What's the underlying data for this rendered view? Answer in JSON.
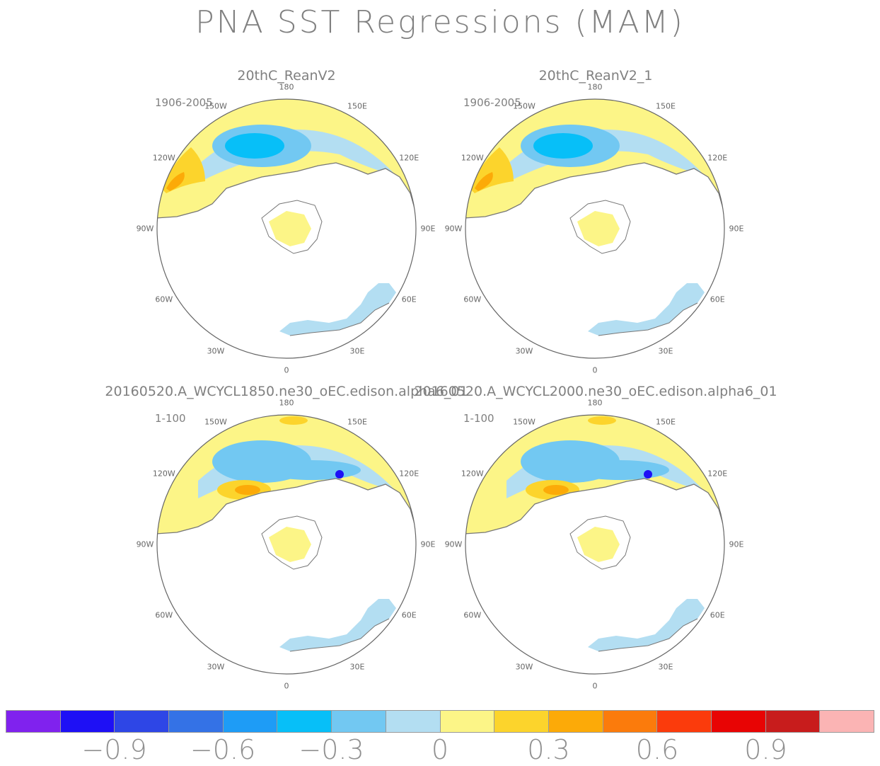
{
  "title": "PNA SST Regressions (MAM)",
  "panels": [
    {
      "title": "20thC_ReanV2",
      "period": "1906-2005"
    },
    {
      "title": "20thC_ReanV2_1",
      "period": "1906-2005"
    },
    {
      "title": "20160520.A_WCYCL1850.ne30_oEC.edison.alpha6_01",
      "period": "1-100"
    },
    {
      "title": "20160520.A_WCYCL2000.ne30_oEC.edison.alpha6_01",
      "period": "1-100"
    }
  ],
  "longitude_labels": {
    "top": "180",
    "upper_left": "150W",
    "upper_right": "150E",
    "left_high": "120W",
    "right_high": "120E",
    "left": "90W",
    "right": "90E",
    "left_low": "60W",
    "right_low": "60E",
    "lower_left": "30W",
    "lower_right": "30E",
    "bottom": "0"
  },
  "colorbar": {
    "colors": [
      "#8022ee",
      "#1e10f5",
      "#2e46e6",
      "#3472e6",
      "#1e9cf6",
      "#07bff8",
      "#72c8f2",
      "#b3def2",
      "#fcf587",
      "#fcd42c",
      "#fcaa08",
      "#fb7b0c",
      "#fb3b0c",
      "#e80404",
      "#c81c1c",
      "#fbb4b4"
    ],
    "tick_labels": [
      "-0.9",
      "-0.6",
      "-0.3",
      "0",
      "0.3",
      "0.6",
      "0.9"
    ],
    "tick_values": [
      -0.9,
      -0.6,
      -0.3,
      0,
      0.3,
      0.6,
      0.9
    ]
  }
}
